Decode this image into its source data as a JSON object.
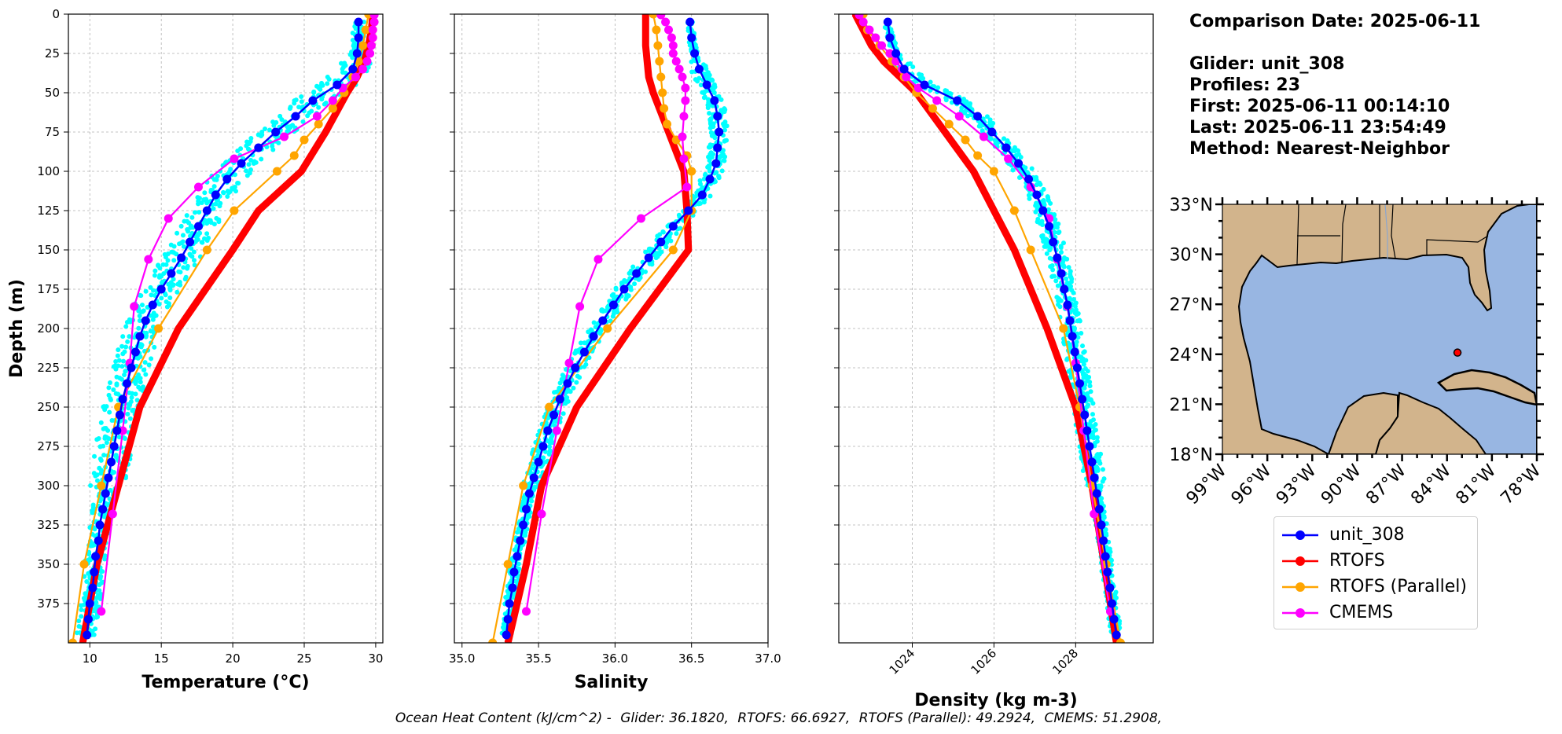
{
  "info": {
    "comparison_date": "Comparison Date: 2025-06-11",
    "glider": "Glider: unit_308",
    "profiles": "Profiles: 23",
    "first": "First: 2025-06-11 00:14:10",
    "last": "Last: 2025-06-11 23:54:49",
    "method": "Method: Nearest-Neighbor"
  },
  "footer": {
    "heading": "Ocean Heat Content (kJ/cm^2) -",
    "glider": "Glider: 36.1820,",
    "rtofs": "RTOFS: 66.6927,",
    "rtofs_parallel": "RTOFS (Parallel): 49.2924,",
    "cmems": "CMEMS: 51.2908,"
  },
  "colors": {
    "unit_308": "#0000ff",
    "rtofs": "#ff0000",
    "rtofs_parallel": "#ffa500",
    "cmems": "#ff00ff",
    "glider_scatter": "#00ffff",
    "land": "#d2b48c",
    "ocean": "#98b6e2"
  },
  "legend": [
    "unit_308",
    "RTOFS",
    "RTOFS (Parallel)",
    "CMEMS"
  ],
  "chart_data": [
    {
      "type": "line",
      "xlabel": "Temperature (°C)",
      "ylabel": "Depth (m)",
      "xlim": [
        8.5,
        30.5
      ],
      "ylim": [
        400,
        0
      ],
      "xticks": [
        10,
        15,
        20,
        25,
        30
      ],
      "yticks": [
        0,
        25,
        50,
        75,
        100,
        125,
        150,
        175,
        200,
        225,
        250,
        275,
        300,
        325,
        350,
        375
      ],
      "grid": true,
      "series": [
        {
          "name": "unit_308",
          "depth": [
            5,
            15,
            25,
            35,
            45,
            55,
            65,
            75,
            85,
            95,
            105,
            115,
            125,
            135,
            145,
            155,
            165,
            175,
            185,
            195,
            205,
            215,
            225,
            235,
            245,
            255,
            265,
            275,
            285,
            295,
            305,
            315,
            325,
            335,
            345,
            355,
            365,
            375,
            385,
            395
          ],
          "values": [
            28.8,
            28.8,
            28.7,
            28.4,
            27.3,
            25.6,
            24.4,
            23.0,
            21.8,
            20.6,
            19.6,
            18.8,
            18.2,
            17.6,
            17.0,
            16.4,
            15.7,
            15.0,
            14.4,
            13.9,
            13.5,
            13.2,
            12.9,
            12.6,
            12.3,
            12.1,
            11.9,
            11.7,
            11.5,
            11.3,
            11.1,
            10.9,
            10.7,
            10.6,
            10.4,
            10.3,
            10.2,
            10.0,
            9.9,
            9.8
          ]
        },
        {
          "name": "RTOFS",
          "depth": [
            0,
            10,
            20,
            30,
            40,
            50,
            75,
            100,
            125,
            150,
            200,
            250,
            300,
            350,
            400
          ],
          "values": [
            29.8,
            29.7,
            29.5,
            29.2,
            28.7,
            28.0,
            26.5,
            24.8,
            21.8,
            20.0,
            16.2,
            13.5,
            12.0,
            10.5,
            9.5
          ]
        },
        {
          "name": "RTOFS (Parallel)",
          "depth": [
            0,
            10,
            20,
            30,
            40,
            50,
            60,
            70,
            80,
            90,
            100,
            125,
            150,
            200,
            250,
            300,
            350,
            400
          ],
          "values": [
            29.5,
            29.3,
            29.1,
            28.8,
            28.4,
            27.8,
            27.0,
            26.0,
            25.0,
            24.3,
            23.1,
            20.1,
            18.2,
            14.8,
            12.0,
            10.8,
            9.6,
            8.8
          ]
        },
        {
          "name": "CMEMS",
          "depth": [
            0.5,
            5,
            10,
            15,
            20,
            25,
            30,
            35,
            40,
            47,
            55,
            65,
            78,
            92,
            110,
            130,
            156,
            186,
            222,
            265,
            318,
            380
          ],
          "values": [
            29.9,
            29.9,
            29.8,
            29.8,
            29.7,
            29.6,
            29.4,
            29.1,
            28.6,
            27.7,
            27.0,
            25.9,
            23.6,
            20.1,
            17.6,
            15.5,
            14.1,
            13.1,
            12.8,
            12.3,
            11.6,
            10.8
          ]
        }
      ]
    },
    {
      "type": "line",
      "xlabel": "Salinity",
      "xlim": [
        34.95,
        37.0
      ],
      "ylim": [
        400,
        0
      ],
      "xticks": [
        35.0,
        35.5,
        36.0,
        36.5,
        37.0
      ],
      "grid": true,
      "series": [
        {
          "name": "unit_308",
          "depth": [
            5,
            15,
            25,
            35,
            45,
            55,
            65,
            75,
            85,
            95,
            105,
            115,
            125,
            135,
            145,
            155,
            165,
            175,
            185,
            195,
            205,
            215,
            225,
            235,
            245,
            255,
            265,
            275,
            285,
            295,
            305,
            315,
            325,
            335,
            345,
            355,
            365,
            375,
            385,
            395
          ],
          "values": [
            36.49,
            36.5,
            36.52,
            36.55,
            36.6,
            36.65,
            36.67,
            36.68,
            36.67,
            36.66,
            36.62,
            36.57,
            36.48,
            36.38,
            36.3,
            36.22,
            36.14,
            36.06,
            35.99,
            35.92,
            35.86,
            35.8,
            35.74,
            35.69,
            35.64,
            35.6,
            35.56,
            35.53,
            35.5,
            35.47,
            35.44,
            35.42,
            35.4,
            35.38,
            35.36,
            35.34,
            35.33,
            35.31,
            35.3,
            35.29
          ]
        },
        {
          "name": "RTOFS",
          "depth": [
            0,
            10,
            20,
            30,
            40,
            50,
            75,
            100,
            125,
            150,
            200,
            250,
            300,
            350,
            400
          ],
          "values": [
            36.2,
            36.2,
            36.2,
            36.21,
            36.22,
            36.25,
            36.35,
            36.45,
            36.47,
            36.48,
            36.1,
            35.75,
            35.52,
            35.42,
            35.3
          ]
        },
        {
          "name": "RTOFS (Parallel)",
          "depth": [
            0,
            10,
            20,
            30,
            40,
            50,
            60,
            70,
            80,
            90,
            100,
            125,
            150,
            200,
            250,
            300,
            350,
            400
          ],
          "values": [
            36.25,
            36.27,
            36.28,
            36.29,
            36.3,
            36.31,
            36.32,
            36.34,
            36.4,
            36.47,
            36.5,
            36.5,
            36.38,
            35.95,
            35.57,
            35.4,
            35.3,
            35.2
          ]
        },
        {
          "name": "CMEMS",
          "depth": [
            0.5,
            5,
            10,
            15,
            20,
            25,
            30,
            35,
            40,
            47,
            55,
            65,
            78,
            92,
            110,
            130,
            156,
            186,
            222,
            265,
            318,
            380
          ],
          "values": [
            36.3,
            36.33,
            36.35,
            36.37,
            36.38,
            36.38,
            36.4,
            36.42,
            36.44,
            36.46,
            36.46,
            36.45,
            36.44,
            36.45,
            36.47,
            36.17,
            35.89,
            35.77,
            35.7,
            35.62,
            35.52,
            35.42
          ]
        }
      ]
    },
    {
      "type": "line",
      "xlabel": "Density (kg m-3)",
      "xlim": [
        1022.2,
        1029.9
      ],
      "ylim": [
        400,
        0
      ],
      "xticks": [
        1024,
        1026,
        1028
      ],
      "grid": true,
      "series": [
        {
          "name": "unit_308",
          "depth": [
            5,
            15,
            25,
            35,
            45,
            55,
            65,
            75,
            85,
            95,
            105,
            115,
            125,
            135,
            145,
            155,
            165,
            175,
            185,
            195,
            205,
            215,
            225,
            235,
            245,
            255,
            265,
            275,
            285,
            295,
            305,
            315,
            325,
            335,
            345,
            355,
            365,
            375,
            385,
            395
          ],
          "values": [
            1023.4,
            1023.45,
            1023.6,
            1023.8,
            1024.3,
            1025.1,
            1025.6,
            1025.95,
            1026.3,
            1026.6,
            1026.85,
            1027.05,
            1027.2,
            1027.35,
            1027.45,
            1027.55,
            1027.65,
            1027.72,
            1027.8,
            1027.86,
            1027.92,
            1027.98,
            1028.04,
            1028.1,
            1028.16,
            1028.22,
            1028.28,
            1028.34,
            1028.4,
            1028.46,
            1028.52,
            1028.58,
            1028.63,
            1028.68,
            1028.73,
            1028.78,
            1028.84,
            1028.89,
            1028.94,
            1029.0
          ]
        },
        {
          "name": "RTOFS",
          "depth": [
            0,
            10,
            20,
            30,
            40,
            50,
            75,
            100,
            125,
            150,
            200,
            250,
            300,
            350,
            400
          ],
          "values": [
            1022.6,
            1022.8,
            1023.0,
            1023.3,
            1023.7,
            1024.1,
            1024.8,
            1025.5,
            1026.0,
            1026.5,
            1027.3,
            1028.0,
            1028.4,
            1028.7,
            1029.0
          ]
        },
        {
          "name": "RTOFS (Parallel)",
          "depth": [
            0,
            10,
            20,
            30,
            40,
            50,
            60,
            70,
            80,
            90,
            100,
            125,
            150,
            200,
            250,
            300,
            350,
            400
          ],
          "values": [
            1022.8,
            1022.9,
            1023.2,
            1023.5,
            1023.8,
            1024.1,
            1024.5,
            1024.9,
            1025.3,
            1025.6,
            1026.0,
            1026.5,
            1026.9,
            1027.7,
            1028.1,
            1028.4,
            1028.75,
            1029.1
          ]
        },
        {
          "name": "CMEMS",
          "depth": [
            0.5,
            5,
            10,
            15,
            20,
            25,
            30,
            35,
            40,
            47,
            55,
            65,
            78,
            92,
            110,
            130,
            156,
            186,
            222,
            265,
            318,
            380
          ],
          "values": [
            1022.7,
            1022.8,
            1022.95,
            1023.1,
            1023.25,
            1023.45,
            1023.6,
            1023.75,
            1023.85,
            1024.15,
            1024.6,
            1025.15,
            1025.75,
            1026.35,
            1026.9,
            1027.35,
            1027.55,
            1027.8,
            1028.0,
            1028.2,
            1028.45,
            1028.85
          ]
        }
      ]
    }
  ],
  "map": {
    "lon_range": [
      -99,
      -78
    ],
    "lat_range": [
      18,
      33
    ],
    "lat_labels": [
      "33°N",
      "30°N",
      "27°N",
      "24°N",
      "21°N",
      "18°N"
    ],
    "lon_labels": [
      "99°W",
      "96°W",
      "93°W",
      "90°W",
      "87°W",
      "84°W",
      "81°W",
      "78°W"
    ],
    "glider_location": {
      "lon": -83.3,
      "lat": 24.1
    }
  }
}
